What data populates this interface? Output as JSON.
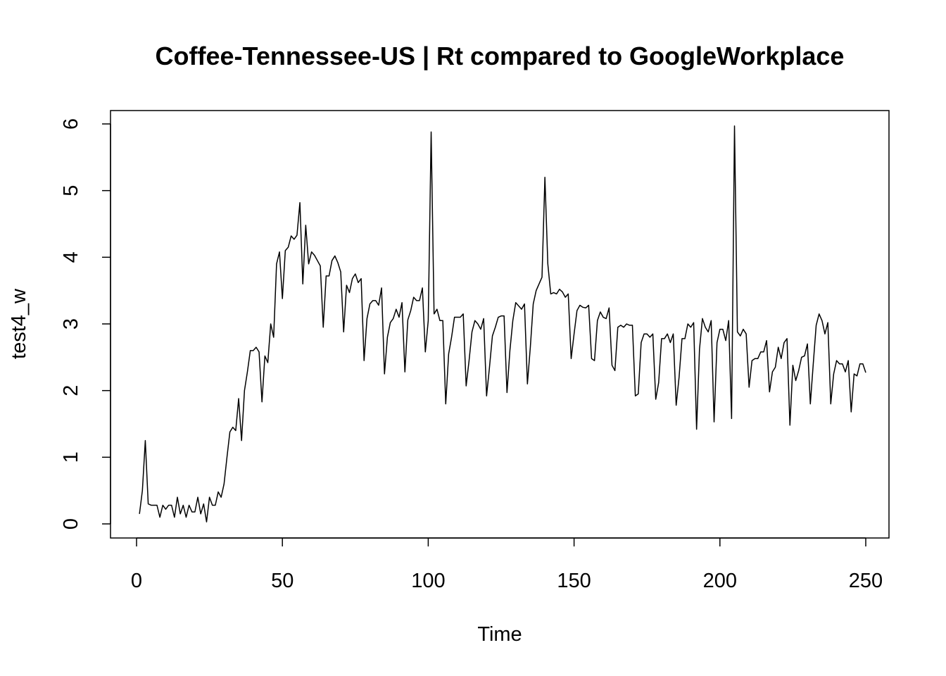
{
  "chart_data": {
    "type": "line",
    "title": "Coffee-Tennessee-US | Rt compared to GoogleWorkplace",
    "xlabel": "Time",
    "ylabel": "test4_w",
    "xlim": [
      0,
      250
    ],
    "ylim": [
      0,
      6
    ],
    "x_ticks": [
      0,
      50,
      100,
      150,
      200,
      250
    ],
    "y_ticks": [
      0,
      1,
      2,
      3,
      4,
      5,
      6
    ],
    "grid": false,
    "series": [
      {
        "values": [
          0.15,
          0.5,
          1.25,
          0.3,
          0.28,
          0.28,
          0.28,
          0.1,
          0.28,
          0.22,
          0.28,
          0.28,
          0.1,
          0.4,
          0.15,
          0.28,
          0.1,
          0.28,
          0.18,
          0.18,
          0.4,
          0.15,
          0.3,
          0.03,
          0.4,
          0.28,
          0.28,
          0.48,
          0.4,
          0.6,
          1.0,
          1.38,
          1.45,
          1.4,
          1.88,
          1.25,
          2.0,
          2.28,
          2.6,
          2.6,
          2.65,
          2.58,
          1.83,
          2.52,
          2.42,
          3.0,
          2.8,
          3.9,
          4.08,
          3.38,
          4.1,
          4.15,
          4.32,
          4.27,
          4.33,
          4.82,
          3.6,
          4.48,
          3.9,
          4.08,
          4.03,
          3.95,
          3.87,
          2.95,
          3.72,
          3.72,
          3.95,
          4.02,
          3.92,
          3.78,
          2.88,
          3.58,
          3.47,
          3.68,
          3.75,
          3.62,
          3.68,
          2.45,
          3.08,
          3.3,
          3.35,
          3.35,
          3.28,
          3.54,
          2.25,
          2.8,
          3.02,
          3.08,
          3.22,
          3.1,
          3.32,
          2.28,
          3.06,
          3.2,
          3.4,
          3.35,
          3.35,
          3.54,
          2.58,
          3.05,
          5.88,
          3.15,
          3.22,
          3.05,
          3.05,
          1.8,
          2.55,
          2.8,
          3.1,
          3.1,
          3.1,
          3.15,
          2.07,
          2.45,
          2.88,
          3.05,
          3.0,
          2.92,
          3.08,
          1.92,
          2.35,
          2.82,
          2.95,
          3.1,
          3.12,
          3.12,
          1.97,
          2.6,
          3.05,
          3.32,
          3.27,
          3.22,
          3.3,
          2.1,
          2.65,
          3.3,
          3.5,
          3.6,
          3.7,
          5.2,
          3.9,
          3.45,
          3.47,
          3.45,
          3.52,
          3.48,
          3.4,
          3.45,
          2.48,
          2.85,
          3.2,
          3.28,
          3.25,
          3.24,
          3.28,
          2.48,
          2.45,
          3.05,
          3.18,
          3.1,
          3.08,
          3.24,
          2.38,
          2.3,
          2.95,
          2.98,
          2.95,
          3.0,
          2.98,
          2.98,
          1.92,
          1.95,
          2.72,
          2.85,
          2.85,
          2.8,
          2.85,
          1.87,
          2.12,
          2.78,
          2.78,
          2.85,
          2.72,
          2.85,
          1.78,
          2.2,
          2.78,
          2.78,
          3.0,
          2.95,
          3.02,
          1.42,
          2.62,
          3.08,
          2.95,
          2.88,
          3.05,
          1.53,
          2.72,
          2.92,
          2.92,
          2.75,
          3.05,
          1.58,
          5.97,
          2.88,
          2.82,
          2.92,
          2.85,
          2.05,
          2.45,
          2.48,
          2.48,
          2.58,
          2.58,
          2.75,
          1.98,
          2.28,
          2.35,
          2.65,
          2.48,
          2.72,
          2.78,
          1.48,
          2.38,
          2.15,
          2.3,
          2.5,
          2.52,
          2.7,
          1.8,
          2.4,
          2.98,
          3.15,
          3.05,
          2.85,
          3.02,
          1.8,
          2.25,
          2.45,
          2.4,
          2.4,
          2.28,
          2.45,
          1.68,
          2.25,
          2.22,
          2.4,
          2.4,
          2.27
        ]
      }
    ]
  }
}
